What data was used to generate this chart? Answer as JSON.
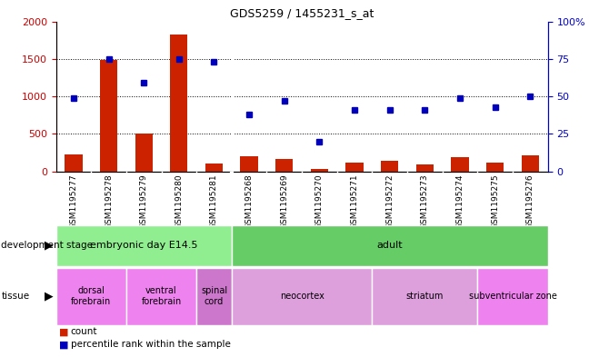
{
  "title": "GDS5259 / 1455231_s_at",
  "samples": [
    "GSM1195277",
    "GSM1195278",
    "GSM1195279",
    "GSM1195280",
    "GSM1195281",
    "GSM1195268",
    "GSM1195269",
    "GSM1195270",
    "GSM1195271",
    "GSM1195272",
    "GSM1195273",
    "GSM1195274",
    "GSM1195275",
    "GSM1195276"
  ],
  "counts": [
    230,
    1480,
    510,
    1820,
    100,
    200,
    170,
    30,
    120,
    140,
    90,
    190,
    120,
    210
  ],
  "percentile": [
    49,
    75,
    59,
    75,
    73,
    38,
    47,
    20,
    41,
    41,
    41,
    49,
    43,
    50
  ],
  "count_scale": 2000,
  "percentile_scale": 100,
  "dev_stage_groups": [
    {
      "label": "embryonic day E14.5",
      "start": 0,
      "end": 5,
      "color": "#90EE90"
    },
    {
      "label": "adult",
      "start": 5,
      "end": 14,
      "color": "#66CC66"
    }
  ],
  "tissue_groups": [
    {
      "label": "dorsal\nforebrain",
      "start": 0,
      "end": 2,
      "color": "#EE82EE"
    },
    {
      "label": "ventral\nforebrain",
      "start": 2,
      "end": 4,
      "color": "#EE82EE"
    },
    {
      "label": "spinal\ncord",
      "start": 4,
      "end": 5,
      "color": "#CC77CC"
    },
    {
      "label": "neocortex",
      "start": 5,
      "end": 9,
      "color": "#DDA0DD"
    },
    {
      "label": "striatum",
      "start": 9,
      "end": 12,
      "color": "#DDA0DD"
    },
    {
      "label": "subventricular zone",
      "start": 12,
      "end": 14,
      "color": "#EE82EE"
    }
  ],
  "bar_color": "#CC2200",
  "dot_color": "#0000BB",
  "ytick_left": [
    0,
    500,
    1000,
    1500,
    2000
  ],
  "ytick_right": [
    0,
    25,
    50,
    75,
    100
  ],
  "ylabel_left_color": "#CC0000",
  "ylabel_right_color": "#0000CC",
  "separator_at": 4.5,
  "chart_bg": "#ffffff",
  "tick_area_bg": "#CCCCCC"
}
